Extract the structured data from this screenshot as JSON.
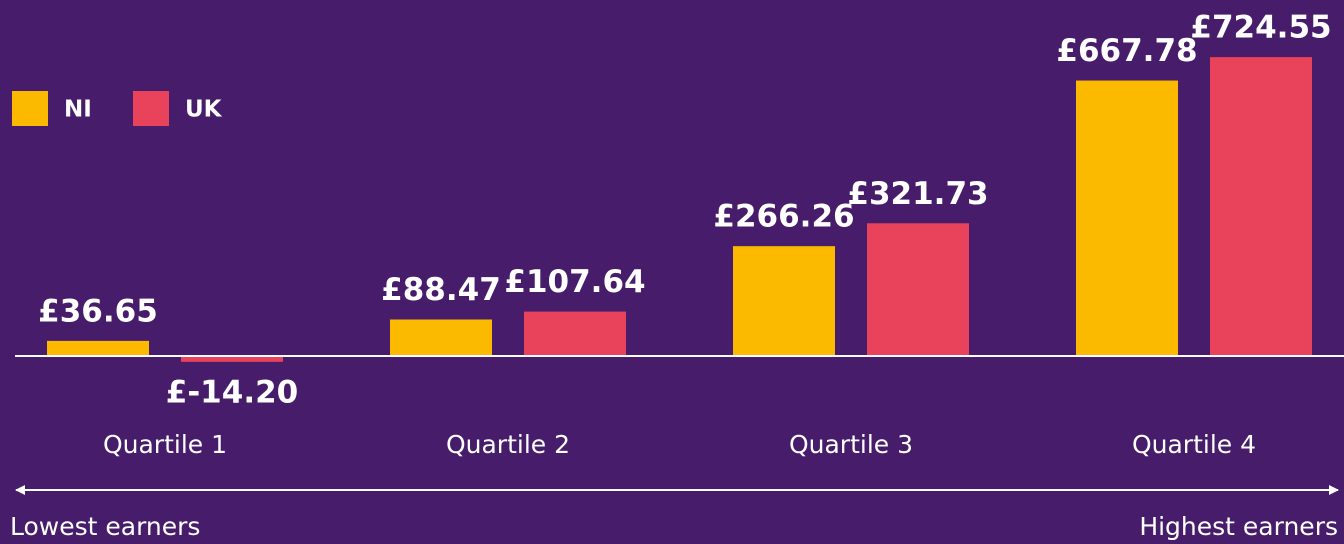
{
  "chart_data": {
    "type": "bar",
    "categories": [
      "Quartile 1",
      "Quartile 2",
      "Quartile 3",
      "Quartile 4"
    ],
    "series": [
      {
        "name": "NI",
        "color": "#fbb900",
        "values": [
          36.65,
          88.47,
          266.26,
          667.78
        ],
        "value_labels": [
          "£36.65",
          "£88.47",
          "£266.26",
          "£667.78"
        ]
      },
      {
        "name": "UK",
        "color": "#e8435a",
        "values": [
          -14.2,
          107.64,
          321.73,
          724.55
        ],
        "value_labels": [
          "£-14.20",
          "£107.64",
          "£321.73",
          "£724.55"
        ]
      }
    ],
    "ylim": [
      0,
      800
    ],
    "x_axis_start_label": "Lowest earners",
    "x_axis_end_label": "Highest earners"
  }
}
